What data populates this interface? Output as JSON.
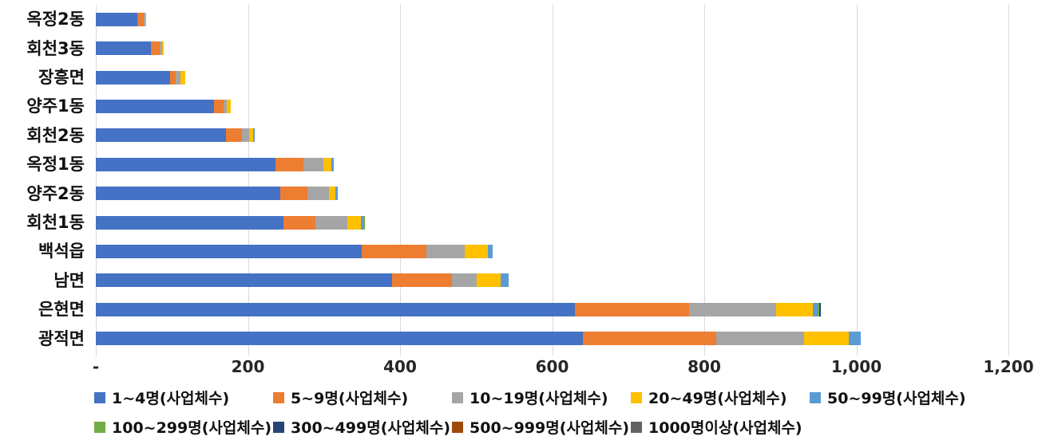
{
  "chart_data": {
    "type": "bar",
    "orientation": "horizontal",
    "stacked": true,
    "title": "",
    "xlabel": "",
    "ylabel": "",
    "xlim": [
      0,
      1200
    ],
    "grid": true,
    "legend_position": "bottom",
    "x_tick_values": [
      0,
      200,
      400,
      600,
      800,
      1000,
      1200
    ],
    "x_tick_labels": [
      "-",
      "200",
      "400",
      "600",
      "800",
      "1,000",
      "1,200"
    ],
    "categories": [
      "옥정2동",
      "회천3동",
      "장흥면",
      "양주1동",
      "회천2동",
      "옥정1동",
      "양주2동",
      "회천1동",
      "백석읍",
      "남면",
      "은현면",
      "광적면"
    ],
    "series": [
      {
        "name": "1~4명(사업체수)",
        "color": "#4472C4",
        "values": [
          55,
          72,
          98,
          155,
          171,
          236,
          242,
          247,
          350,
          390,
          630,
          640
        ]
      },
      {
        "name": "5~9명(사업체수)",
        "color": "#ED7D31",
        "values": [
          8,
          12,
          7,
          13,
          21,
          37,
          36,
          42,
          85,
          78,
          150,
          176
        ]
      },
      {
        "name": "10~19명(사업체수)",
        "color": "#A5A5A5",
        "values": [
          2,
          3,
          6,
          4,
          10,
          26,
          29,
          42,
          50,
          33,
          115,
          115
        ]
      },
      {
        "name": "20~49명(사업체수)",
        "color": "#FFC000",
        "values": [
          1,
          2,
          7,
          5,
          5,
          11,
          8,
          18,
          30,
          31,
          48,
          59
        ]
      },
      {
        "name": "50~99명(사업체수)",
        "color": "#5B9BD5",
        "values": [
          0,
          0,
          0,
          0,
          2,
          3,
          3,
          3,
          7,
          11,
          6,
          16
        ]
      },
      {
        "name": "100~299명(사업체수)",
        "color": "#70AD47",
        "values": [
          0,
          0,
          0,
          0,
          0,
          0,
          0,
          2,
          0,
          0,
          2,
          0
        ]
      },
      {
        "name": "300~499명(사업체수)",
        "color": "#264478",
        "values": [
          0,
          0,
          0,
          0,
          0,
          0,
          0,
          0,
          0,
          0,
          2,
          0
        ]
      },
      {
        "name": "500~999명(사업체수)",
        "color": "#9E480E",
        "values": [
          0,
          0,
          0,
          0,
          0,
          0,
          0,
          0,
          0,
          0,
          0,
          0
        ]
      },
      {
        "name": "1000명이상(사업체수)",
        "color": "#636363",
        "values": [
          0,
          0,
          0,
          0,
          0,
          0,
          0,
          0,
          0,
          0,
          0,
          0
        ]
      }
    ],
    "legend_row_split": [
      5,
      4
    ]
  }
}
